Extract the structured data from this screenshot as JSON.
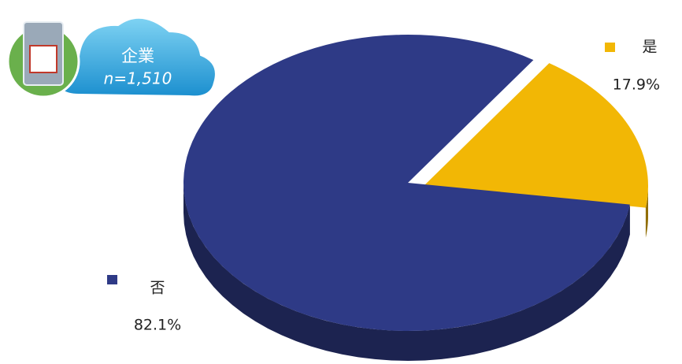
{
  "chart_data": {
    "type": "pie",
    "annotations": [
      "企業",
      "n=1,510"
    ],
    "categories": [
      "是",
      "否"
    ],
    "values": [
      17.9,
      82.1
    ],
    "value_labels": [
      "17.9%",
      "82.1%"
    ],
    "colors": [
      "#f2b705",
      "#2e3a86"
    ]
  }
}
